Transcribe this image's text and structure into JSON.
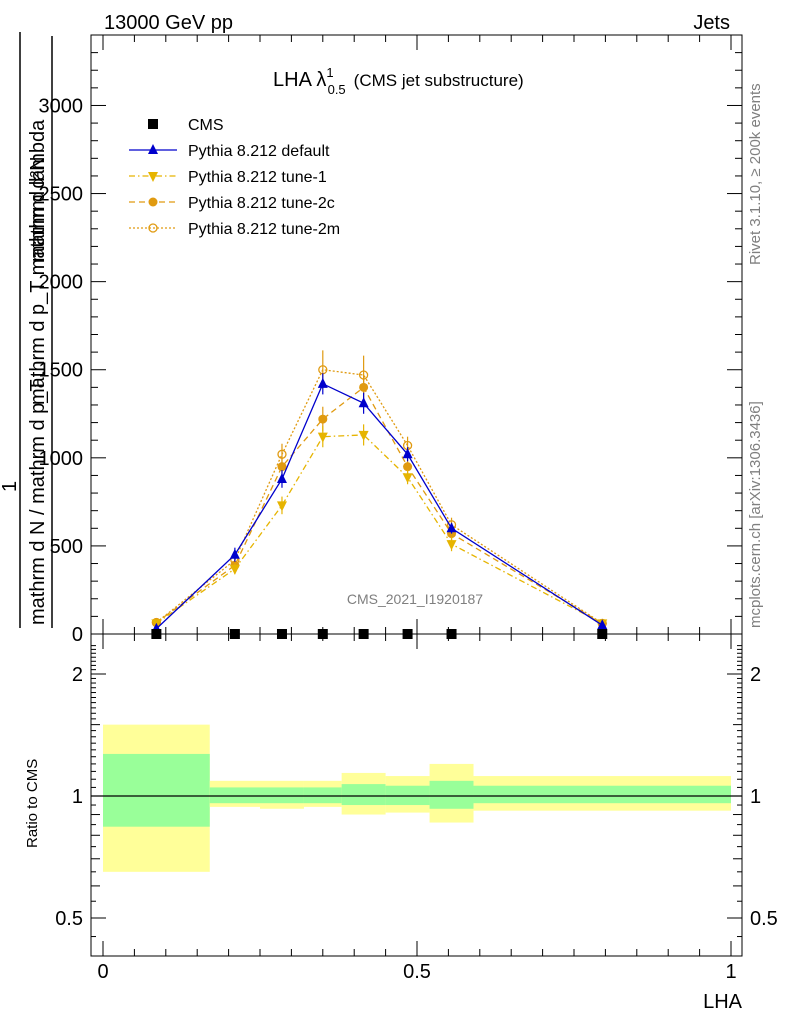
{
  "header": {
    "left": "13000 GeV pp",
    "right": "Jets"
  },
  "side_labels": {
    "rivet": "Rivet 3.1.10, ≥ 200k events",
    "mcplots": "mcplots.cern.ch [arXiv:1306.3436]"
  },
  "main_plot": {
    "title_main": "LHA λ",
    "title_sup": "1",
    "title_sub": "0.5",
    "title_tail": "(CMS jet substructure)",
    "ylabel_top": "mathrm d²N",
    "ylabel_mid": "mathrm d p_T mathrm d lambda",
    "ylabel_one": "1",
    "ylabel_bottom": "mathrm d N / mathrm d p_T",
    "watermark": "CMS_2021_I1920187",
    "y_ticks": [
      "0",
      "500",
      "1000",
      "1500",
      "2000",
      "2500",
      "3000"
    ]
  },
  "ratio_plot": {
    "ylabel": "Ratio to CMS",
    "xlabel": "LHA",
    "y_ticks": [
      "0.5",
      "1",
      "2"
    ],
    "x_ticks": [
      "0",
      "0.5",
      "1"
    ]
  },
  "legend": [
    {
      "label": "CMS",
      "color": "#000000",
      "marker": "square",
      "style": "none"
    },
    {
      "label": "Pythia 8.212 default",
      "color": "#0000cc",
      "marker": "triangle-up",
      "style": "solid"
    },
    {
      "label": "Pythia 8.212 tune-1",
      "color": "#e6b400",
      "marker": "triangle-down",
      "style": "dashdot"
    },
    {
      "label": "Pythia 8.212 tune-2c",
      "color": "#e09a10",
      "marker": "circle",
      "style": "dashed"
    },
    {
      "label": "Pythia 8.212 tune-2m",
      "color": "#e09a10",
      "marker": "circle-open",
      "style": "dotted"
    }
  ],
  "chart_data": [
    {
      "type": "line",
      "title": "LHA λ^1_0.5 (CMS jet substructure)",
      "xlabel": "LHA",
      "ylabel": "1/(dN/dpT) d²N/(dpT dλ)",
      "xlim": [
        0,
        1
      ],
      "ylim": [
        0,
        3400
      ],
      "series": [
        {
          "name": "CMS",
          "x": [
            0.085,
            0.21,
            0.285,
            0.35,
            0.415,
            0.485,
            0.555,
            0.795
          ],
          "y": [
            0,
            0,
            0,
            0,
            0,
            0,
            0,
            0
          ],
          "err": [
            0,
            0,
            0,
            0,
            0,
            0,
            0,
            0
          ]
        },
        {
          "name": "Pythia 8.212 default",
          "x": [
            0.085,
            0.21,
            0.285,
            0.35,
            0.415,
            0.485,
            0.555,
            0.795
          ],
          "y": [
            30,
            450,
            880,
            1420,
            1310,
            1020,
            600,
            50
          ],
          "err": [
            10,
            40,
            50,
            60,
            60,
            40,
            30,
            10
          ]
        },
        {
          "name": "Pythia 8.212 tune-1",
          "x": [
            0.085,
            0.21,
            0.285,
            0.35,
            0.415,
            0.485,
            0.555,
            0.795
          ],
          "y": [
            60,
            370,
            730,
            1120,
            1130,
            890,
            510,
            60
          ],
          "err": [
            10,
            30,
            50,
            60,
            60,
            40,
            40,
            10
          ]
        },
        {
          "name": "Pythia 8.212 tune-2c",
          "x": [
            0.085,
            0.21,
            0.285,
            0.35,
            0.415,
            0.485,
            0.555,
            0.795
          ],
          "y": [
            65,
            390,
            950,
            1220,
            1400,
            950,
            570,
            60
          ],
          "err": [
            10,
            30,
            50,
            70,
            70,
            40,
            40,
            10
          ]
        },
        {
          "name": "Pythia 8.212 tune-2m",
          "x": [
            0.085,
            0.21,
            0.285,
            0.35,
            0.415,
            0.485,
            0.555,
            0.795
          ],
          "y": [
            65,
            420,
            1020,
            1500,
            1470,
            1070,
            620,
            60
          ],
          "err": [
            10,
            40,
            60,
            110,
            110,
            50,
            40,
            10
          ]
        }
      ]
    },
    {
      "type": "area",
      "title": "Ratio to CMS",
      "xlabel": "LHA",
      "ylabel": "Ratio to CMS",
      "xlim": [
        0,
        1
      ],
      "ylim": [
        0.4,
        2.4
      ],
      "yscale": "log",
      "bins": [
        {
          "x_low": 0.0,
          "x_high": 0.17,
          "inner": [
            0.84,
            1.27
          ],
          "outer": [
            0.65,
            1.5
          ]
        },
        {
          "x_low": 0.17,
          "x_high": 0.25,
          "inner": [
            0.96,
            1.05
          ],
          "outer": [
            0.94,
            1.09
          ]
        },
        {
          "x_low": 0.25,
          "x_high": 0.32,
          "inner": [
            0.96,
            1.05
          ],
          "outer": [
            0.93,
            1.09
          ]
        },
        {
          "x_low": 0.32,
          "x_high": 0.38,
          "inner": [
            0.96,
            1.05
          ],
          "outer": [
            0.94,
            1.09
          ]
        },
        {
          "x_low": 0.38,
          "x_high": 0.45,
          "inner": [
            0.95,
            1.07
          ],
          "outer": [
            0.9,
            1.14
          ]
        },
        {
          "x_low": 0.45,
          "x_high": 0.52,
          "inner": [
            0.95,
            1.06
          ],
          "outer": [
            0.91,
            1.12
          ]
        },
        {
          "x_low": 0.52,
          "x_high": 0.59,
          "inner": [
            0.93,
            1.09
          ],
          "outer": [
            0.86,
            1.2
          ]
        },
        {
          "x_low": 0.59,
          "x_high": 1.0,
          "inner": [
            0.96,
            1.06
          ],
          "outer": [
            0.92,
            1.12
          ]
        }
      ]
    }
  ]
}
